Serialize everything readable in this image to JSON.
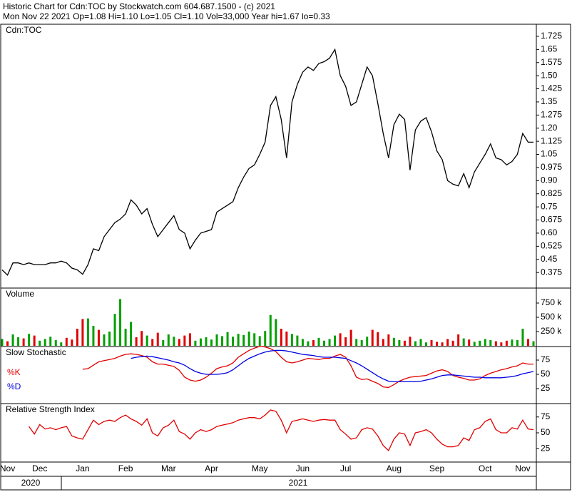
{
  "header": {
    "lines": [
      "Historic Chart for Cdn:TOC by Stockwatch.com 604.687.1500 - (c) 2021",
      "Mon Nov 22 2021  Op=1.08  Hi=1.10  Lo=1.05  Cl=1.10  Vol=33,000  Year hi=1.67  lo=0.33"
    ]
  },
  "x_axis": {
    "categories": [
      null,
      "Nov",
      null,
      null,
      null,
      null,
      null,
      "Dec",
      null,
      null,
      null,
      null,
      null,
      null,
      null,
      "Jan",
      null,
      null,
      null,
      null,
      null,
      null,
      null,
      "Feb",
      null,
      null,
      null,
      null,
      null,
      null,
      null,
      "Mar",
      null,
      null,
      null,
      null,
      null,
      null,
      null,
      "Apr",
      null,
      null,
      null,
      null,
      null,
      null,
      null,
      null,
      "May",
      null,
      null,
      null,
      null,
      null,
      null,
      null,
      "Jun",
      null,
      null,
      null,
      null,
      null,
      null,
      null,
      "Jul",
      null,
      null,
      null,
      null,
      null,
      null,
      null,
      null,
      "Aug",
      null,
      null,
      null,
      null,
      null,
      null,
      null,
      "Sep",
      null,
      null,
      null,
      null,
      null,
      null,
      null,
      null,
      "Oct",
      null,
      null,
      null,
      null,
      null,
      null,
      "Nov",
      null,
      null
    ],
    "years": [
      "2020",
      "2021"
    ]
  },
  "chart_data": [
    {
      "type": "line",
      "title": "Cdn:TOC",
      "ylim": [
        0.29,
        1.79
      ],
      "yticks": [
        1.725,
        1.65,
        1.575,
        {
          "value": 1.5,
          "label": "1.50"
        },
        1.425,
        1.35,
        1.275,
        {
          "value": 1.2,
          "label": "1.20"
        },
        1.125,
        1.05,
        0.975,
        {
          "value": 0.9,
          "label": "0.90"
        },
        0.825,
        0.75,
        0.675,
        {
          "value": 0.6,
          "label": "0.60"
        },
        0.525,
        0.45,
        0.375
      ],
      "series": [
        {
          "color": "#000000",
          "values": [
            0.39,
            0.36,
            0.43,
            0.43,
            0.42,
            0.43,
            0.42,
            0.42,
            0.42,
            0.43,
            0.43,
            0.44,
            0.43,
            0.4,
            0.39,
            0.365,
            0.42,
            0.51,
            0.5,
            0.58,
            0.62,
            0.66,
            0.68,
            0.71,
            0.79,
            0.76,
            0.71,
            0.74,
            0.65,
            0.58,
            0.62,
            0.66,
            0.7,
            0.62,
            0.6,
            0.51,
            0.56,
            0.6,
            0.61,
            0.62,
            0.72,
            0.74,
            0.76,
            0.78,
            0.86,
            0.92,
            0.97,
            0.99,
            1.05,
            1.12,
            1.33,
            1.38,
            1.25,
            1.03,
            1.35,
            1.45,
            1.52,
            1.55,
            1.53,
            1.57,
            1.58,
            1.6,
            1.65,
            1.5,
            1.44,
            1.33,
            1.35,
            1.45,
            1.55,
            1.5,
            1.34,
            1.17,
            1.03,
            1.22,
            1.28,
            1.25,
            0.96,
            1.19,
            1.24,
            1.26,
            1.18,
            1.07,
            1.02,
            0.9,
            0.88,
            0.87,
            0.94,
            0.86,
            0.95,
            1.0,
            1.05,
            1.11,
            1.03,
            1.02,
            0.99,
            1.01,
            1.05,
            1.17,
            1.12,
            1.12
          ]
        }
      ]
    },
    {
      "type": "bar",
      "title": "Volume",
      "ylim": [
        0,
        1000000
      ],
      "up_color": "#00a000",
      "down_color": "#e00000",
      "yticks": [
        {
          "value": 750000,
          "label": "750 k"
        },
        {
          "value": 500000,
          "label": "500 k"
        },
        {
          "value": 250000,
          "label": "250 k"
        }
      ],
      "values": [
        120000,
        80000,
        200000,
        150000,
        130000,
        210000,
        180000,
        90000,
        120000,
        160000,
        100000,
        60000,
        140000,
        110000,
        300000,
        470000,
        480000,
        350000,
        280000,
        200000,
        250000,
        560000,
        820000,
        300000,
        420000,
        150000,
        260000,
        180000,
        120000,
        230000,
        100000,
        200000,
        160000,
        120000,
        180000,
        220000,
        90000,
        130000,
        150000,
        110000,
        200000,
        170000,
        240000,
        160000,
        210000,
        190000,
        250000,
        220000,
        170000,
        260000,
        540000,
        470000,
        300000,
        250000,
        210000,
        180000,
        120000,
        80000,
        100000,
        140000,
        90000,
        120000,
        180000,
        220000,
        150000,
        280000,
        120000,
        100000,
        160000,
        280000,
        240000,
        120000,
        200000,
        140000,
        100000,
        90000,
        160000,
        80000,
        120000,
        60000,
        100000,
        70000,
        60000,
        120000,
        90000,
        200000,
        130000,
        110000,
        70000,
        90000,
        120000,
        100000,
        80000,
        60000,
        90000,
        110000,
        100000,
        300000,
        120000,
        80000
      ]
    },
    {
      "type": "line",
      "title": "Slow Stochastic",
      "ylim": [
        0,
        97.5
      ],
      "yticks": [
        75,
        50,
        25
      ],
      "legend": "left",
      "series": [
        {
          "name": "%K",
          "color": "#e00000",
          "values": [
            null,
            null,
            null,
            null,
            null,
            null,
            null,
            null,
            null,
            null,
            null,
            null,
            null,
            null,
            null,
            59,
            60,
            66,
            72,
            74,
            76,
            78,
            82,
            85,
            86,
            85,
            83,
            80,
            72,
            68,
            68,
            66,
            64,
            57,
            45,
            40,
            38,
            40,
            45,
            52,
            60,
            63,
            65,
            70,
            80,
            86,
            92,
            96,
            99,
            98,
            95,
            90,
            80,
            72,
            70,
            72,
            75,
            78,
            77,
            76,
            78,
            78,
            82,
            85,
            80,
            65,
            45,
            41,
            42,
            38,
            34,
            28,
            27,
            32,
            38,
            42,
            45,
            46,
            47,
            48,
            52,
            56,
            58,
            55,
            48,
            45,
            43,
            40,
            40,
            42,
            48,
            52,
            55,
            58,
            60,
            63,
            65,
            70,
            68,
            68
          ]
        },
        {
          "name": "%D",
          "color": "#0000e0",
          "values": [
            null,
            null,
            null,
            null,
            null,
            null,
            null,
            null,
            null,
            null,
            null,
            null,
            null,
            null,
            null,
            null,
            null,
            null,
            null,
            null,
            null,
            null,
            null,
            null,
            78,
            80,
            81,
            82,
            81,
            79,
            77,
            75,
            72,
            70,
            66,
            60,
            55,
            52,
            50,
            50,
            50,
            51,
            53,
            58,
            65,
            72,
            78,
            82,
            86,
            89,
            91,
            92,
            92,
            91,
            89,
            87,
            85,
            84,
            83,
            81,
            80,
            80,
            80,
            79,
            78,
            74,
            70,
            65,
            59,
            53,
            47,
            42,
            38,
            37,
            37,
            37,
            37,
            37,
            38,
            40,
            42,
            45,
            48,
            49,
            49,
            48,
            47,
            46,
            45,
            45,
            44,
            44,
            44,
            44,
            45,
            46,
            48,
            51,
            53,
            55
          ]
        }
      ]
    },
    {
      "type": "line",
      "title": "Relative Strength Index",
      "ylim": [
        5,
        95
      ],
      "yticks": [
        75,
        50,
        25
      ],
      "series": [
        {
          "color": "#e00000",
          "values": [
            null,
            null,
            null,
            null,
            null,
            60,
            48,
            63,
            56,
            58,
            55,
            58,
            60,
            45,
            42,
            40,
            55,
            70,
            63,
            68,
            70,
            68,
            74,
            78,
            72,
            68,
            62,
            72,
            50,
            45,
            58,
            62,
            70,
            52,
            48,
            40,
            50,
            55,
            52,
            55,
            60,
            62,
            64,
            66,
            70,
            72,
            74,
            74,
            72,
            78,
            86,
            84,
            70,
            50,
            68,
            70,
            72,
            70,
            68,
            70,
            71,
            70,
            70,
            55,
            48,
            40,
            42,
            55,
            58,
            56,
            45,
            30,
            22,
            40,
            50,
            48,
            30,
            50,
            52,
            55,
            50,
            40,
            32,
            28,
            28,
            30,
            42,
            38,
            55,
            58,
            68,
            72,
            55,
            50,
            50,
            58,
            56,
            70,
            56,
            55
          ]
        }
      ]
    }
  ]
}
